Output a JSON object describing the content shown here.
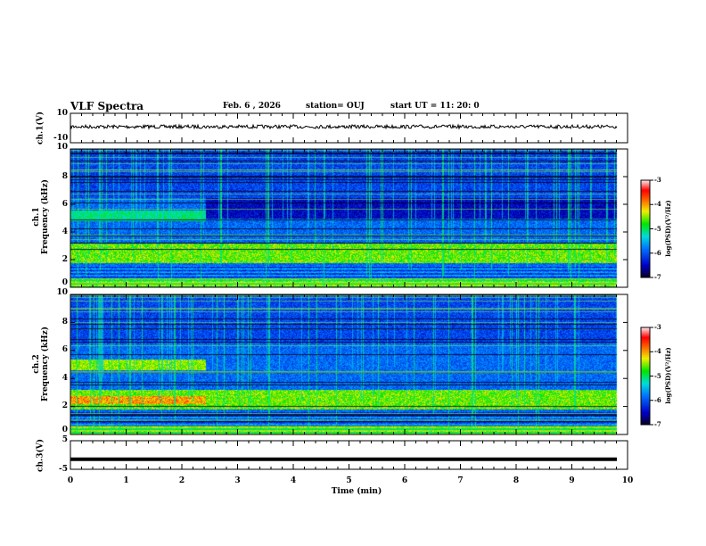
{
  "header": {
    "title": "VLF Spectra",
    "date": "Feb. 6 , 2026",
    "station": "station= OUJ",
    "start": "start  UT =   11: 20: 0"
  },
  "chart_data": [
    {
      "type": "line",
      "name": "ch1-waveform",
      "ylabel": "ch.1(V)",
      "ylim": [
        -10,
        10
      ],
      "yticks": [
        "10",
        "-10"
      ],
      "xlim": [
        0,
        10
      ],
      "baseline": 0
    },
    {
      "type": "heatmap",
      "name": "ch1-spectrogram",
      "ylabel": "ch.1\nFrequency (kHz)",
      "ylabel_ch": "ch.1",
      "ylabel_freq": "Frequency (kHz)",
      "ylim": [
        0,
        10
      ],
      "yticks": [
        "0",
        "2",
        "4",
        "6",
        "8",
        "10"
      ],
      "xlim": [
        0,
        10
      ],
      "colorbar": {
        "label": "log(PSD)(V²/Hz)",
        "range": [
          -7,
          -3
        ],
        "ticks": [
          "-3",
          "-4",
          "-5",
          "-6",
          "-7"
        ]
      },
      "change_time_min": 2.55
    },
    {
      "type": "heatmap",
      "name": "ch2-spectrogram",
      "ylabel_ch": "ch.2",
      "ylabel_freq": "Frequency (kHz)",
      "ylim": [
        0,
        10
      ],
      "yticks": [
        "0",
        "2",
        "4",
        "6",
        "8",
        "10"
      ],
      "xlim": [
        0,
        10
      ],
      "colorbar": {
        "label": "log(PSD)(V²/Hz)",
        "range": [
          -7,
          -3
        ],
        "ticks": [
          "-3",
          "-4",
          "-5",
          "-6",
          "-7"
        ]
      },
      "change_time_min": 2.55
    },
    {
      "type": "line",
      "name": "ch3-waveform",
      "ylabel": "ch.3(V)",
      "ylim": [
        -5,
        5
      ],
      "yticks": [
        "5",
        "-5"
      ],
      "constant_value": -1.5,
      "xlim": [
        0,
        10
      ]
    }
  ],
  "xaxis": {
    "label": "Time (min)",
    "ticks": [
      "0",
      "1",
      "2",
      "3",
      "4",
      "5",
      "6",
      "7",
      "8",
      "9",
      "10"
    ]
  }
}
